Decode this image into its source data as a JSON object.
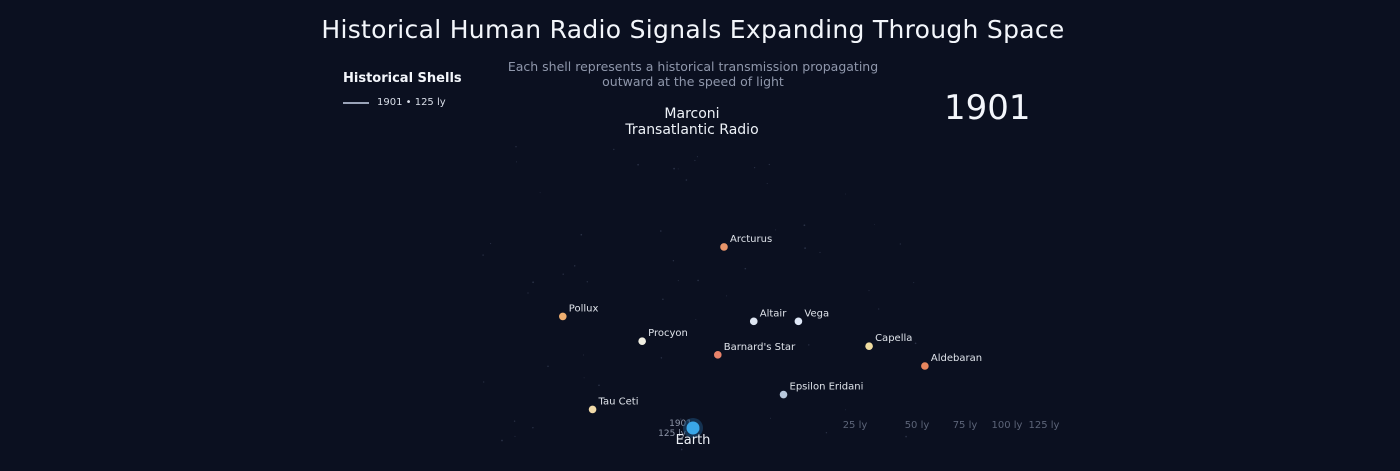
{
  "title": "Historical Human Radio Signals Expanding Through Space",
  "subtitle_line1": "Each shell represents a historical transmission propagating",
  "subtitle_line2": "outward at the speed of light",
  "legend": {
    "title": "Historical Shells",
    "entries": [
      {
        "label": "1901  •  125 ly",
        "color": "#9aa3b8"
      }
    ]
  },
  "current_year": "1901",
  "event": {
    "line1": "Marconi",
    "line2": "Transatlantic Radio"
  },
  "chart_data": {
    "type": "scatter",
    "title": "Historical Human Radio Signals Expanding Through Space",
    "origin": {
      "name": "Earth",
      "x": 0,
      "y": 0,
      "color": "#3aa7e8"
    },
    "shell": {
      "year": "1901",
      "radius_ly": 125,
      "label_year": "1901",
      "label_distance": "125 ly"
    },
    "distance_ticks": [
      "25 ly",
      "50 ly",
      "75 ly",
      "100 ly",
      "125 ly"
    ],
    "tick_values": [
      25,
      50,
      75,
      100,
      125
    ],
    "points": [
      {
        "name": "Arcturus",
        "x": 2.5,
        "y": 14.6,
        "color": "#e8956a"
      },
      {
        "name": "Pollux",
        "x": -10.5,
        "y": 9.0,
        "color": "#efae70"
      },
      {
        "name": "Altair",
        "x": 4.9,
        "y": 8.6,
        "color": "#dfe6f2"
      },
      {
        "name": "Vega",
        "x": 8.5,
        "y": 8.6,
        "color": "#dfe8f7"
      },
      {
        "name": "Procyon",
        "x": -4.1,
        "y": 7.0,
        "color": "#f1efe2"
      },
      {
        "name": "Capella",
        "x": 14.2,
        "y": 6.6,
        "color": "#f0dca0"
      },
      {
        "name": "Barnard's Star",
        "x": 2.0,
        "y": 5.9,
        "color": "#e8836a"
      },
      {
        "name": "Aldebaran",
        "x": 18.7,
        "y": 5.0,
        "color": "#e8865e"
      },
      {
        "name": "Epsilon Eridani",
        "x": 7.3,
        "y": 2.7,
        "color": "#b8c8dc"
      },
      {
        "name": "Tau Ceti",
        "x": -8.1,
        "y": 1.5,
        "color": "#f0d9a8"
      }
    ]
  }
}
